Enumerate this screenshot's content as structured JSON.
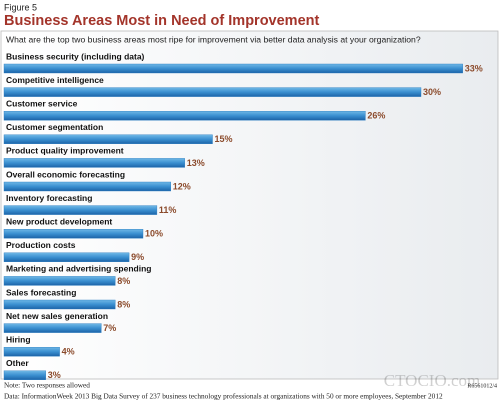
{
  "chart_data": {
    "type": "bar",
    "orientation": "horizontal",
    "figure_label": "Figure 5",
    "title": "Business Areas Most in Need of Improvement",
    "subtitle": "What are the top two business areas most ripe for improvement via better data analysis at your organization?",
    "categories": [
      "Business security (including data)",
      "Competitive intelligence",
      "Customer service",
      "Customer segmentation",
      "Product quality improvement",
      "Overall economic forecasting",
      "Inventory forecasting",
      "New product development",
      "Production costs",
      "Marketing and advertising spending",
      "Sales forecasting",
      "Net new sales generation",
      "Hiring",
      "Other"
    ],
    "values": [
      33,
      30,
      26,
      15,
      13,
      12,
      11,
      10,
      9,
      8,
      8,
      7,
      4,
      3
    ],
    "value_labels": [
      "33%",
      "30%",
      "26%",
      "15%",
      "13%",
      "12%",
      "11%",
      "10%",
      "9%",
      "8%",
      "8%",
      "7%",
      "4%",
      "3%"
    ],
    "color": "#2a7cc0",
    "note": "Note: Two responses allowed",
    "source": "Data: InformationWeek 2013 Big Data Survey of 237 business technology professionals at organizations with 50 or more employees, September 2012",
    "code": "R6561012/4",
    "watermark": "CTOCIO.com"
  }
}
